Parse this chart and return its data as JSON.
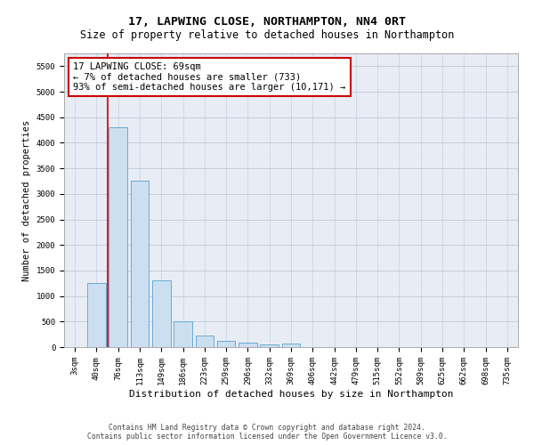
{
  "title": "17, LAPWING CLOSE, NORTHAMPTON, NN4 0RT",
  "subtitle": "Size of property relative to detached houses in Northampton",
  "xlabel": "Distribution of detached houses by size in Northampton",
  "ylabel": "Number of detached properties",
  "bar_labels": [
    "3sqm",
    "40sqm",
    "76sqm",
    "113sqm",
    "149sqm",
    "186sqm",
    "223sqm",
    "259sqm",
    "296sqm",
    "332sqm",
    "369sqm",
    "406sqm",
    "442sqm",
    "479sqm",
    "515sqm",
    "552sqm",
    "589sqm",
    "625sqm",
    "662sqm",
    "698sqm",
    "735sqm"
  ],
  "bar_values": [
    0,
    1250,
    4300,
    3250,
    1300,
    500,
    230,
    120,
    80,
    60,
    70,
    0,
    0,
    0,
    0,
    0,
    0,
    0,
    0,
    0,
    0
  ],
  "bar_color": "#ccdff0",
  "bar_edge_color": "#6aaad4",
  "annotation_text": "17 LAPWING CLOSE: 69sqm\n← 7% of detached houses are smaller (733)\n93% of semi-detached houses are larger (10,171) →",
  "annotation_box_color": "#ffffff",
  "annotation_box_edge": "#cc0000",
  "vline_color": "#cc0000",
  "ylim": [
    0,
    5750
  ],
  "yticks": [
    0,
    500,
    1000,
    1500,
    2000,
    2500,
    3000,
    3500,
    4000,
    4500,
    5000,
    5500
  ],
  "grid_color": "#c0c8d8",
  "background_color": "#e8edf5",
  "footer_text": "Contains HM Land Registry data © Crown copyright and database right 2024.\nContains public sector information licensed under the Open Government Licence v3.0.",
  "title_fontsize": 9.5,
  "subtitle_fontsize": 8.5,
  "xlabel_fontsize": 8,
  "ylabel_fontsize": 7.5,
  "annotation_fontsize": 7.5,
  "tick_fontsize": 6.5,
  "footer_fontsize": 5.8
}
